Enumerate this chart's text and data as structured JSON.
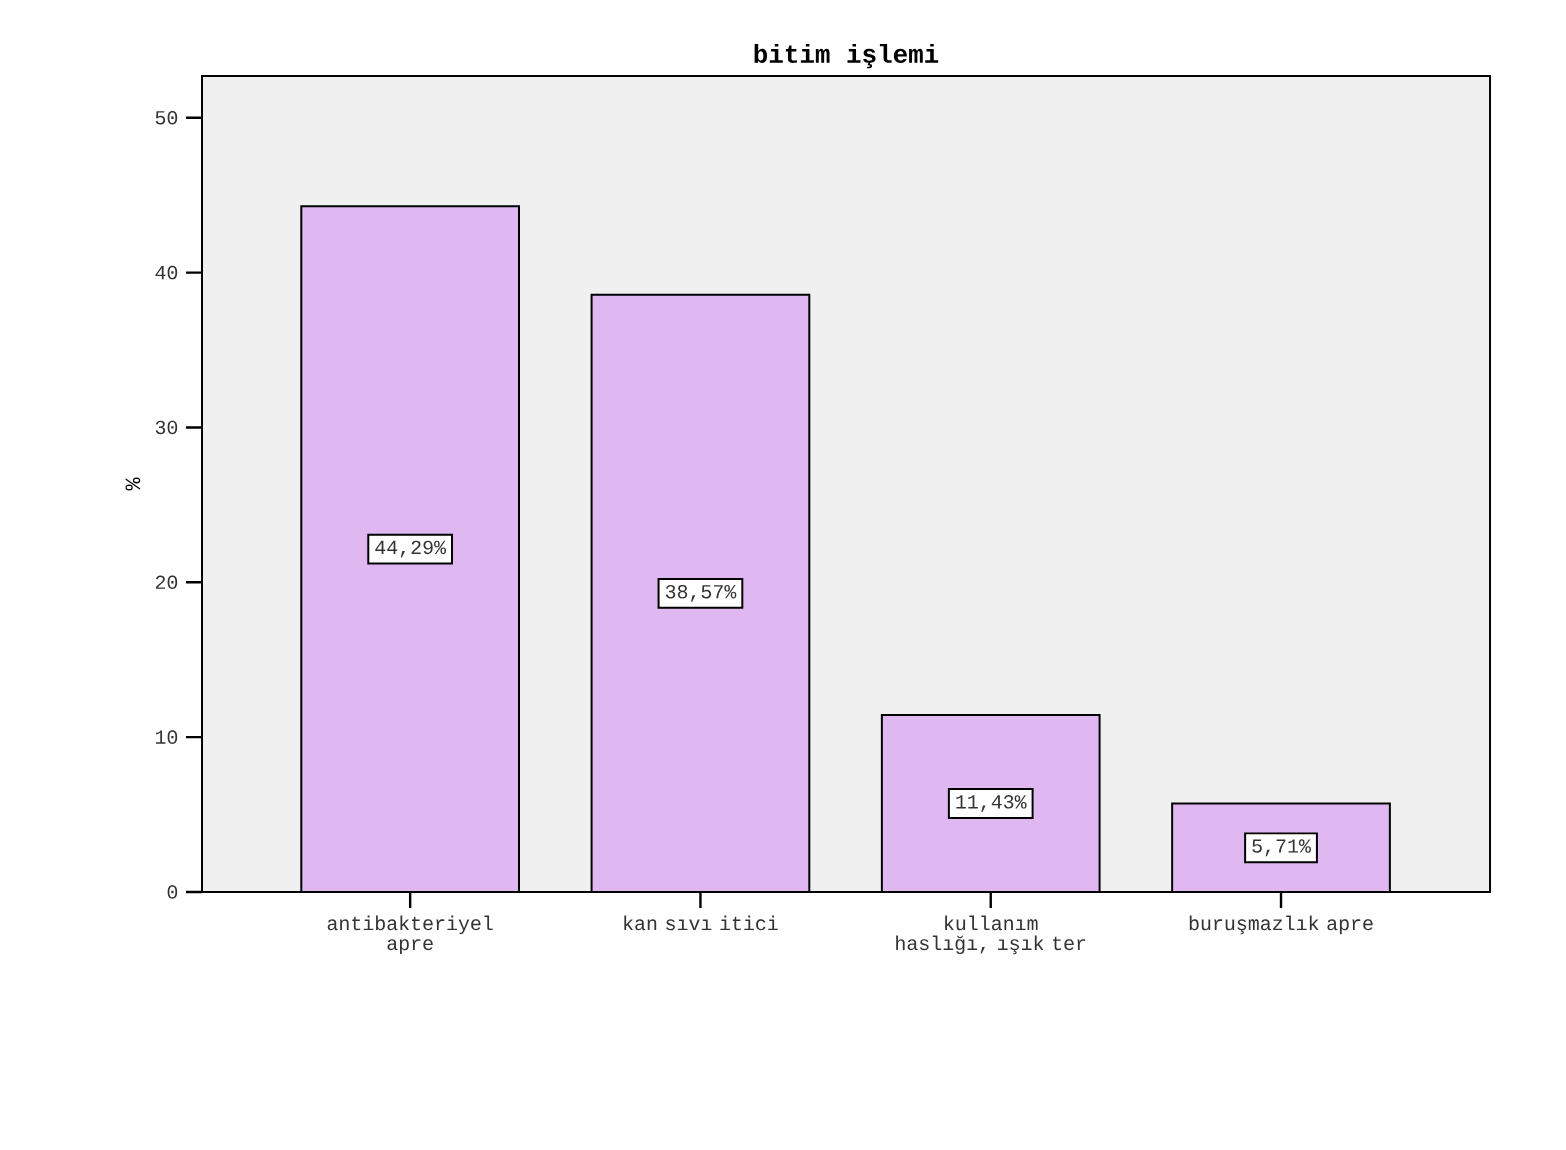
{
  "chart_data": {
    "type": "bar",
    "title": "bitim işlemi",
    "ylabel": "%",
    "categories": [
      "antibakteriyel apre",
      "kan sıvı itici",
      "kullanım haslığı, ışık ter",
      "buruşmazlık apre"
    ],
    "values": [
      44.29,
      38.57,
      11.43,
      5.71
    ],
    "value_labels": [
      "44,29%",
      "38,57%",
      "11,43%",
      "5,71%"
    ],
    "color": "#dfb8f2",
    "ylim": [
      0,
      52.7
    ],
    "yticks": [
      0,
      10,
      20,
      30,
      40,
      50
    ],
    "grid": false
  }
}
